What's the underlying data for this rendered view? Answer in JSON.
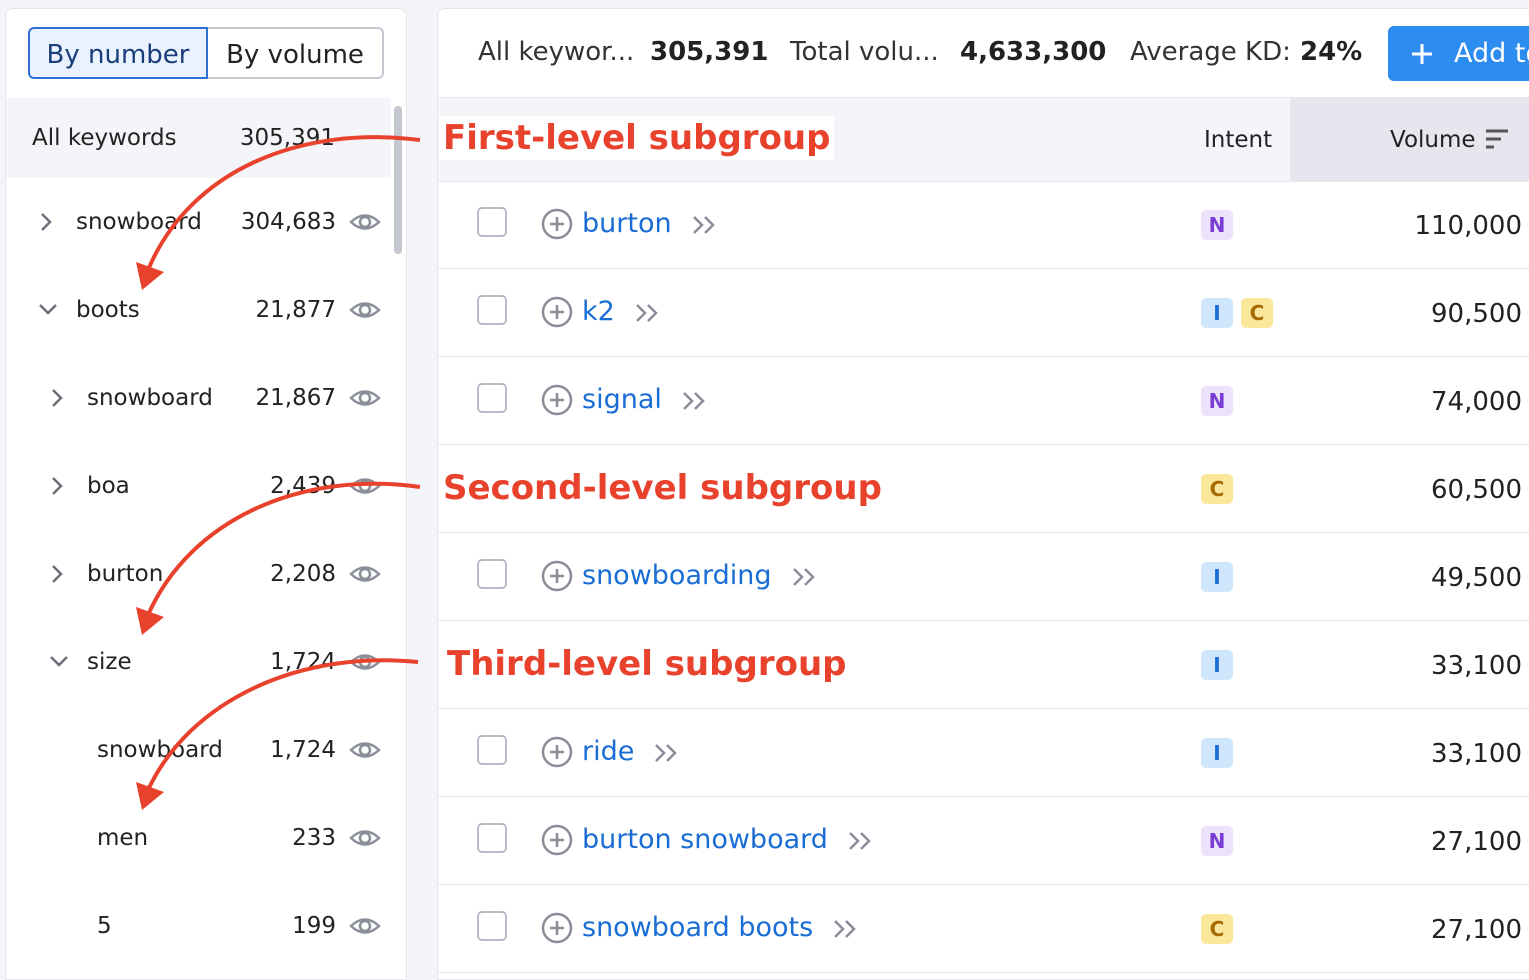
{
  "toggle": {
    "options": [
      "By number",
      "By volume"
    ],
    "active": 0
  },
  "tree": {
    "all": {
      "label": "All keywords",
      "count": "305,391"
    },
    "items": [
      {
        "label": "snowboard",
        "count": "304,683",
        "indent": 0,
        "chevron": "right"
      },
      {
        "label": "boots",
        "count": "21,877",
        "indent": 0,
        "chevron": "down"
      },
      {
        "label": "snowboard",
        "count": "21,867",
        "indent": 1,
        "chevron": "right"
      },
      {
        "label": "boa",
        "count": "2,439",
        "indent": 1,
        "chevron": "right"
      },
      {
        "label": "burton",
        "count": "2,208",
        "indent": 1,
        "chevron": "right"
      },
      {
        "label": "size",
        "count": "1,724",
        "indent": 1,
        "chevron": "down"
      },
      {
        "label": "snowboard",
        "count": "1,724",
        "indent": 2,
        "chevron": null
      },
      {
        "label": "men",
        "count": "233",
        "indent": 2,
        "chevron": null
      },
      {
        "label": "5",
        "count": "199",
        "indent": 2,
        "chevron": null
      }
    ]
  },
  "summary": [
    {
      "label": "All keywor...",
      "value": "305,391"
    },
    {
      "label": "Total volu...",
      "value": "4,633,300"
    },
    {
      "label": "Average KD:",
      "value": "24%"
    }
  ],
  "add_button": "Add to",
  "table": {
    "headers": [
      "Intent",
      "Volume"
    ],
    "rows": [
      {
        "keyword": "burton",
        "intents": [
          "N"
        ],
        "volume": "110,000"
      },
      {
        "keyword": "k2",
        "intents": [
          "I",
          "C"
        ],
        "volume": "90,500"
      },
      {
        "keyword": "signal",
        "intents": [
          "N"
        ],
        "volume": "74,000"
      },
      {
        "keyword": null,
        "intents": [
          "C"
        ],
        "volume": "60,500"
      },
      {
        "keyword": "snowboarding",
        "intents": [
          "I"
        ],
        "volume": "49,500"
      },
      {
        "keyword": null,
        "intents": [
          "I"
        ],
        "volume": "33,100"
      },
      {
        "keyword": "ride",
        "intents": [
          "I"
        ],
        "volume": "33,100"
      },
      {
        "keyword": "burton snowboard",
        "intents": [
          "N"
        ],
        "volume": "27,100"
      },
      {
        "keyword": "snowboard boots",
        "intents": [
          "C"
        ],
        "volume": "27,100"
      }
    ]
  },
  "annotations": [
    "First-level subgroup",
    "Second-level subgroup",
    "Third-level subgroup"
  ]
}
